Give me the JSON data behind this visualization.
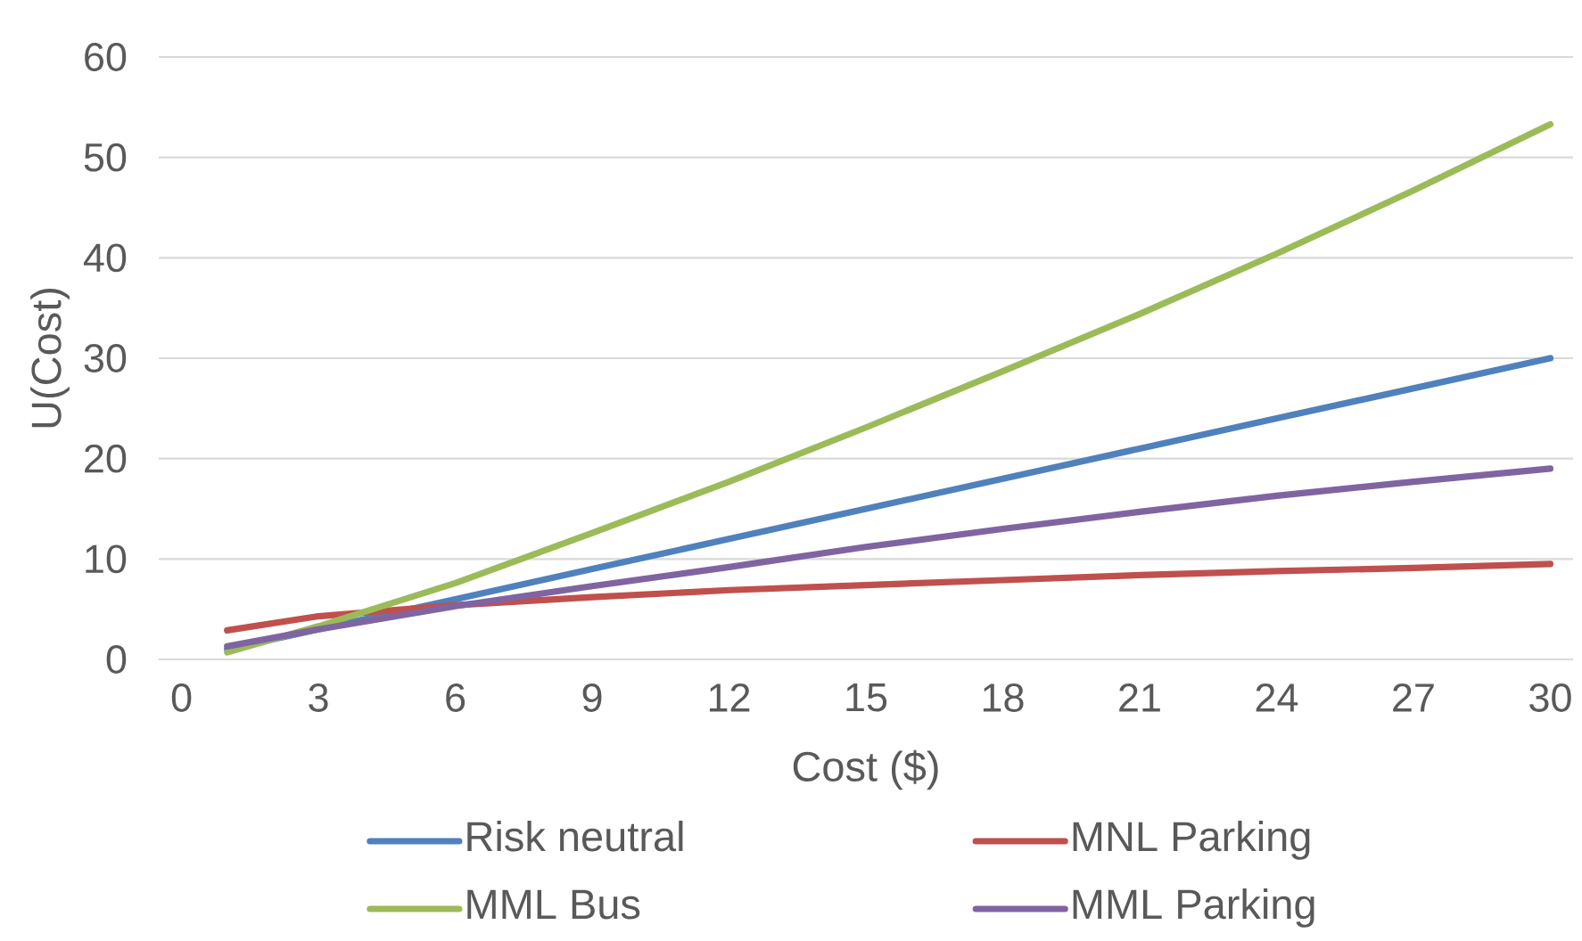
{
  "chart_data": {
    "type": "line",
    "xlabel": "Cost ($)",
    "ylabel": "U(Cost)",
    "x": [
      1,
      3,
      6,
      9,
      12,
      15,
      18,
      21,
      24,
      27,
      30
    ],
    "series": [
      {
        "name": "Risk neutral",
        "color": "#4f81bd",
        "values": [
          1,
          3,
          6,
          9,
          12,
          15,
          18,
          21,
          24,
          27,
          30
        ]
      },
      {
        "name": "MNL Parking",
        "color": "#c0504d",
        "values": [
          2.9,
          4.3,
          5.4,
          6.2,
          6.9,
          7.4,
          7.9,
          8.4,
          8.8,
          9.1,
          9.5
        ]
      },
      {
        "name": "MML Bus",
        "color": "#9bbb59",
        "values": [
          0.7,
          3.3,
          7.6,
          12.6,
          17.7,
          23.1,
          28.7,
          34.4,
          40.4,
          46.7,
          53.3
        ]
      },
      {
        "name": "MML Parking",
        "color": "#8064a2",
        "values": [
          1.3,
          3.0,
          5.3,
          7.3,
          9.2,
          11.2,
          13.0,
          14.7,
          16.3,
          17.7,
          19.0
        ]
      }
    ],
    "xlim": [
      -0.5,
      30.5
    ],
    "xticks": [
      0,
      3,
      6,
      9,
      12,
      15,
      18,
      21,
      24,
      27,
      30
    ],
    "ylim": [
      0,
      60
    ],
    "yticks": [
      0,
      10,
      20,
      30,
      40,
      50,
      60
    ],
    "grid": "y",
    "legend": "bottom",
    "line_style": "solid"
  }
}
